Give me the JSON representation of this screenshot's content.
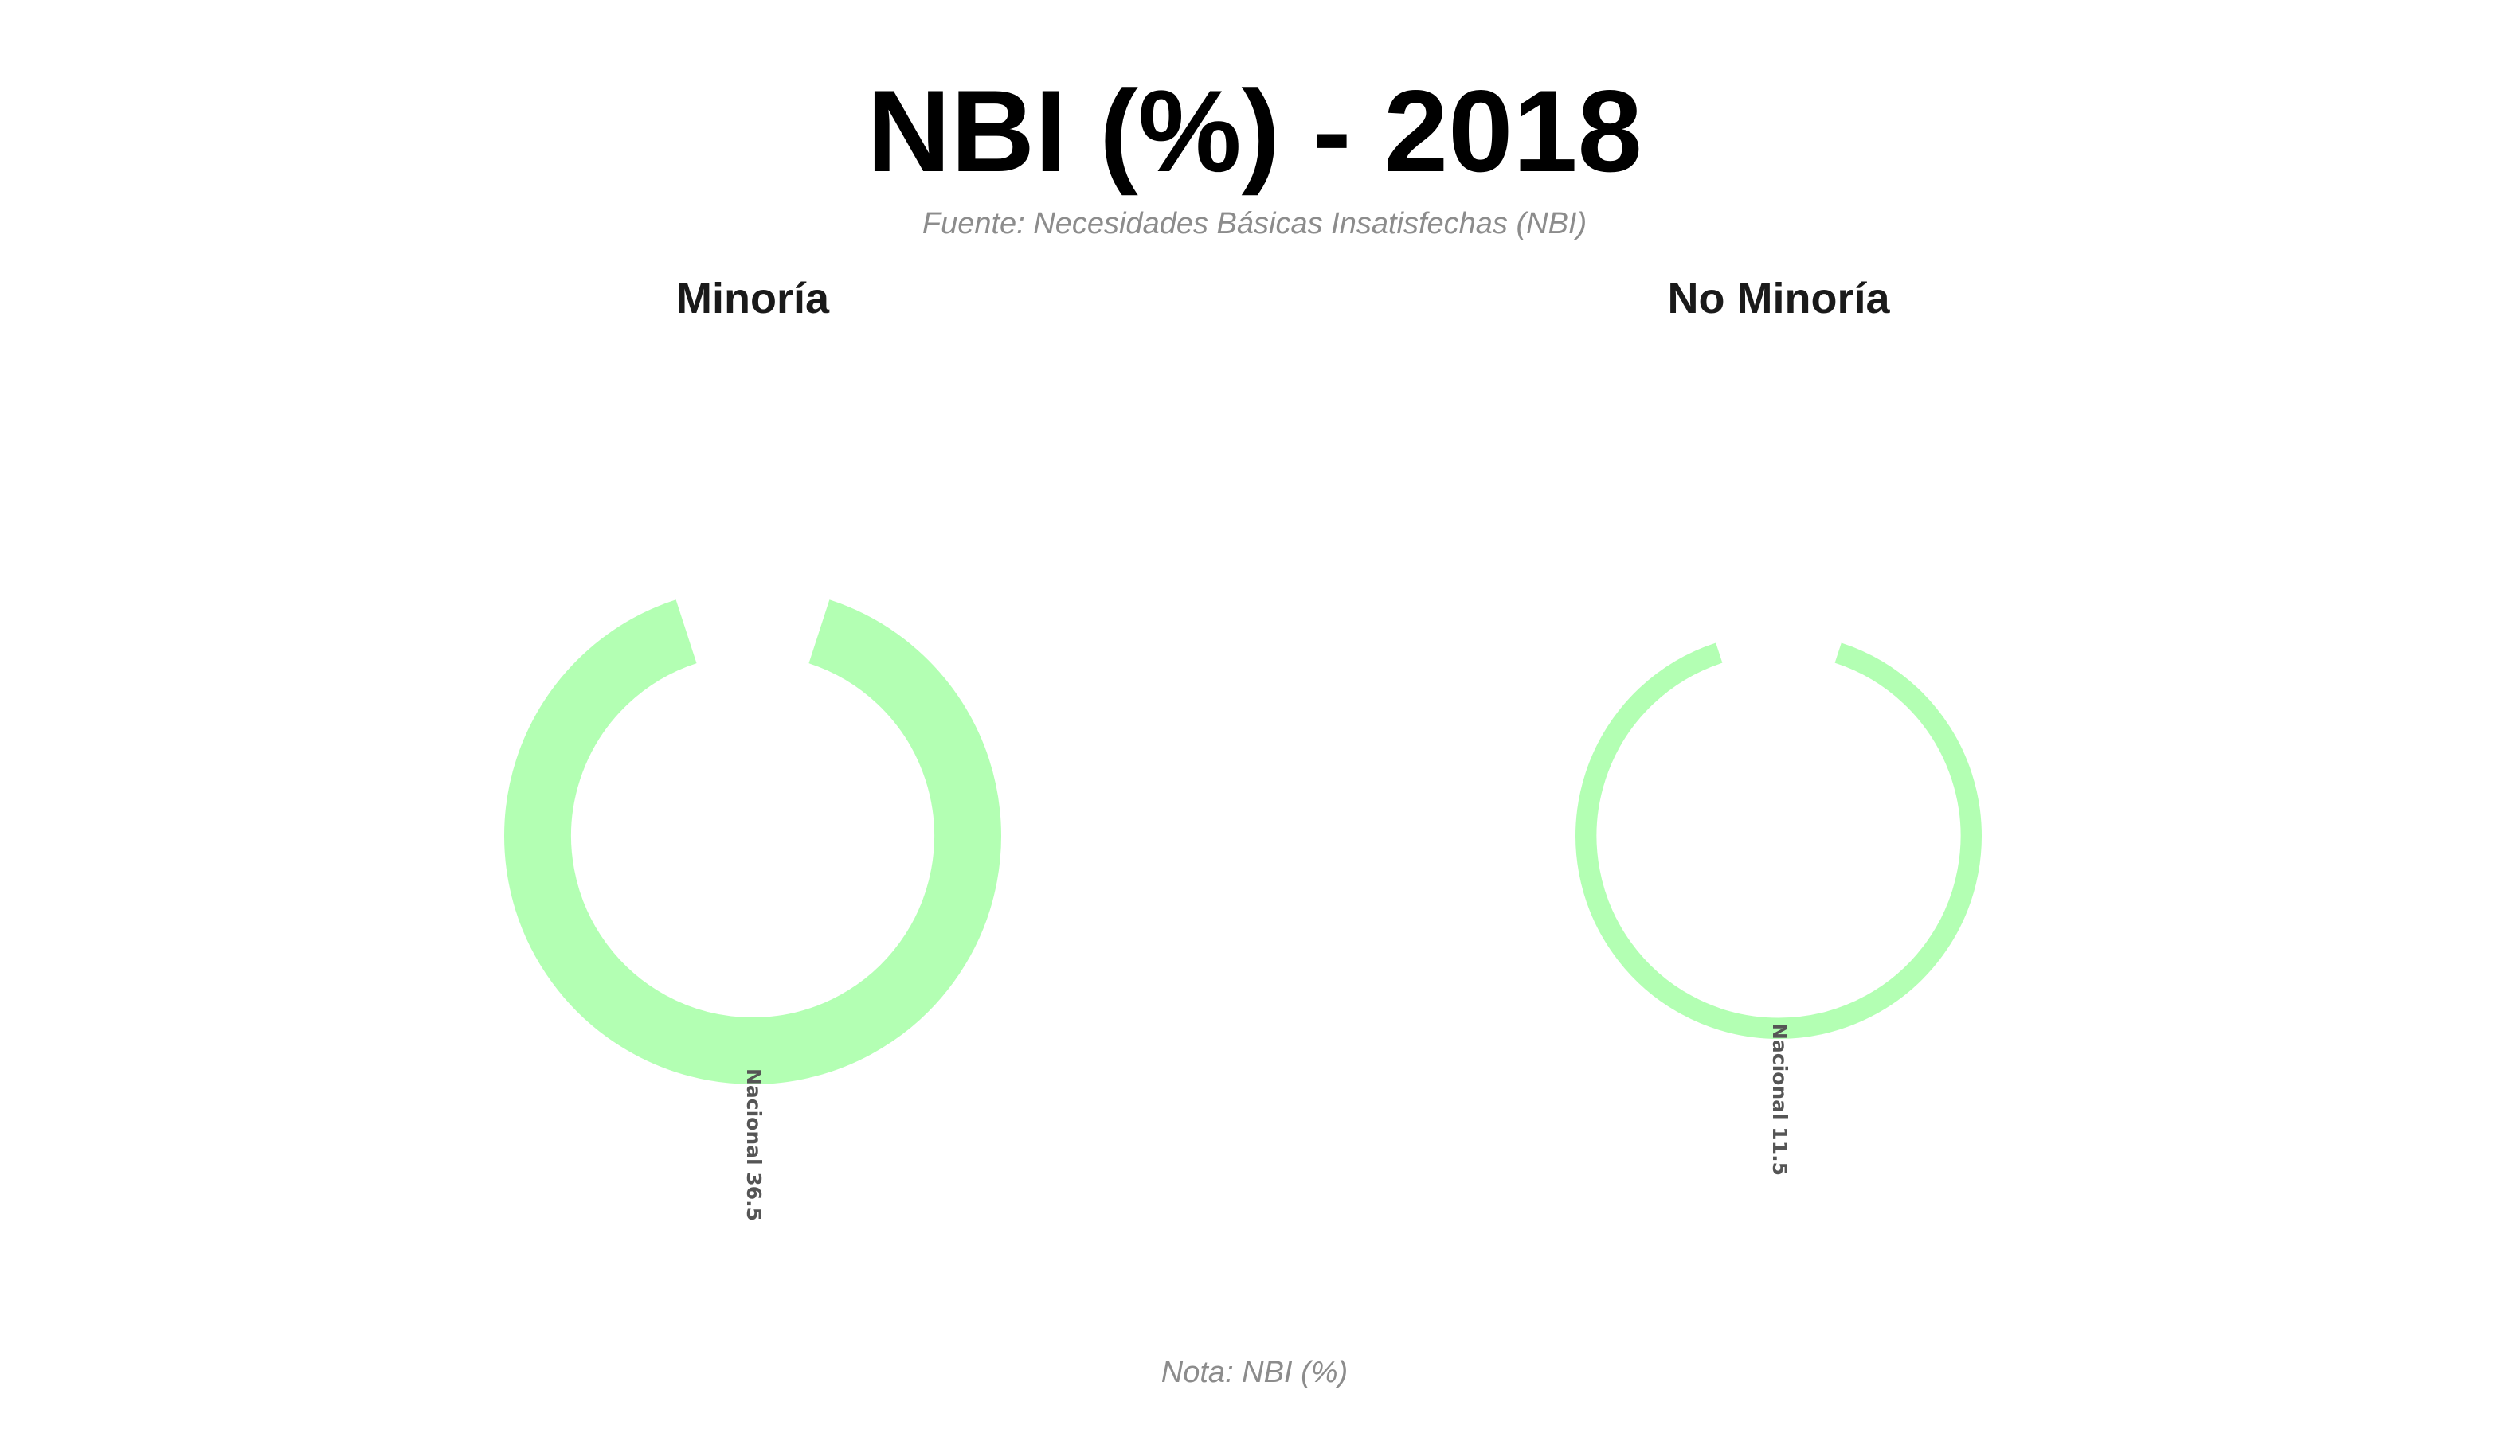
{
  "title": "NBI (%) - 2018",
  "subtitle": "Fuente: Necesidades Básicas Insatisfechas (NBI)",
  "note": "Nota: NBI (%)",
  "chart_data": {
    "type": "radial-bar",
    "unit": "%",
    "color": "#b3ffb3",
    "panels": [
      {
        "title": "Minoría",
        "categories": [
          "Nacional"
        ],
        "values": [
          36.5
        ],
        "labels": [
          "Nacional 36.5"
        ]
      },
      {
        "title": "No Minoría",
        "categories": [
          "Nacional"
        ],
        "values": [
          11.5
        ],
        "labels": [
          "Nacional 11.5"
        ]
      }
    ]
  }
}
